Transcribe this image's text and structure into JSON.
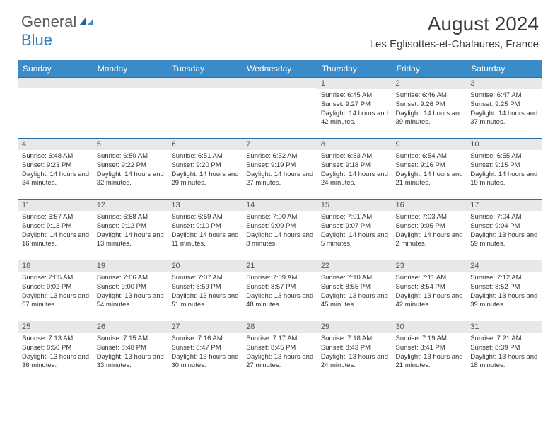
{
  "logo": {
    "general": "General",
    "blue": "Blue"
  },
  "title": "August 2024",
  "location": "Les Eglisottes-et-Chalaures, France",
  "colors": {
    "header_bg": "#3a8cc9",
    "header_text": "#ffffff",
    "daynum_bg": "#e8e8e8",
    "border": "#2b6fa8",
    "logo_blue": "#2b7fc3",
    "logo_gray": "#5a5a5a"
  },
  "weekdays": [
    "Sunday",
    "Monday",
    "Tuesday",
    "Wednesday",
    "Thursday",
    "Friday",
    "Saturday"
  ],
  "weeks": [
    [
      null,
      null,
      null,
      null,
      {
        "n": "1",
        "sr": "6:45 AM",
        "ss": "9:27 PM",
        "dl": "14 hours and 42 minutes."
      },
      {
        "n": "2",
        "sr": "6:46 AM",
        "ss": "9:26 PM",
        "dl": "14 hours and 39 minutes."
      },
      {
        "n": "3",
        "sr": "6:47 AM",
        "ss": "9:25 PM",
        "dl": "14 hours and 37 minutes."
      }
    ],
    [
      {
        "n": "4",
        "sr": "6:48 AM",
        "ss": "9:23 PM",
        "dl": "14 hours and 34 minutes."
      },
      {
        "n": "5",
        "sr": "6:50 AM",
        "ss": "9:22 PM",
        "dl": "14 hours and 32 minutes."
      },
      {
        "n": "6",
        "sr": "6:51 AM",
        "ss": "9:20 PM",
        "dl": "14 hours and 29 minutes."
      },
      {
        "n": "7",
        "sr": "6:52 AM",
        "ss": "9:19 PM",
        "dl": "14 hours and 27 minutes."
      },
      {
        "n": "8",
        "sr": "6:53 AM",
        "ss": "9:18 PM",
        "dl": "14 hours and 24 minutes."
      },
      {
        "n": "9",
        "sr": "6:54 AM",
        "ss": "9:16 PM",
        "dl": "14 hours and 21 minutes."
      },
      {
        "n": "10",
        "sr": "6:55 AM",
        "ss": "9:15 PM",
        "dl": "14 hours and 19 minutes."
      }
    ],
    [
      {
        "n": "11",
        "sr": "6:57 AM",
        "ss": "9:13 PM",
        "dl": "14 hours and 16 minutes."
      },
      {
        "n": "12",
        "sr": "6:58 AM",
        "ss": "9:12 PM",
        "dl": "14 hours and 13 minutes."
      },
      {
        "n": "13",
        "sr": "6:59 AM",
        "ss": "9:10 PM",
        "dl": "14 hours and 11 minutes."
      },
      {
        "n": "14",
        "sr": "7:00 AM",
        "ss": "9:09 PM",
        "dl": "14 hours and 8 minutes."
      },
      {
        "n": "15",
        "sr": "7:01 AM",
        "ss": "9:07 PM",
        "dl": "14 hours and 5 minutes."
      },
      {
        "n": "16",
        "sr": "7:03 AM",
        "ss": "9:05 PM",
        "dl": "14 hours and 2 minutes."
      },
      {
        "n": "17",
        "sr": "7:04 AM",
        "ss": "9:04 PM",
        "dl": "13 hours and 59 minutes."
      }
    ],
    [
      {
        "n": "18",
        "sr": "7:05 AM",
        "ss": "9:02 PM",
        "dl": "13 hours and 57 minutes."
      },
      {
        "n": "19",
        "sr": "7:06 AM",
        "ss": "9:00 PM",
        "dl": "13 hours and 54 minutes."
      },
      {
        "n": "20",
        "sr": "7:07 AM",
        "ss": "8:59 PM",
        "dl": "13 hours and 51 minutes."
      },
      {
        "n": "21",
        "sr": "7:09 AM",
        "ss": "8:57 PM",
        "dl": "13 hours and 48 minutes."
      },
      {
        "n": "22",
        "sr": "7:10 AM",
        "ss": "8:55 PM",
        "dl": "13 hours and 45 minutes."
      },
      {
        "n": "23",
        "sr": "7:11 AM",
        "ss": "8:54 PM",
        "dl": "13 hours and 42 minutes."
      },
      {
        "n": "24",
        "sr": "7:12 AM",
        "ss": "8:52 PM",
        "dl": "13 hours and 39 minutes."
      }
    ],
    [
      {
        "n": "25",
        "sr": "7:13 AM",
        "ss": "8:50 PM",
        "dl": "13 hours and 36 minutes."
      },
      {
        "n": "26",
        "sr": "7:15 AM",
        "ss": "8:48 PM",
        "dl": "13 hours and 33 minutes."
      },
      {
        "n": "27",
        "sr": "7:16 AM",
        "ss": "8:47 PM",
        "dl": "13 hours and 30 minutes."
      },
      {
        "n": "28",
        "sr": "7:17 AM",
        "ss": "8:45 PM",
        "dl": "13 hours and 27 minutes."
      },
      {
        "n": "29",
        "sr": "7:18 AM",
        "ss": "8:43 PM",
        "dl": "13 hours and 24 minutes."
      },
      {
        "n": "30",
        "sr": "7:19 AM",
        "ss": "8:41 PM",
        "dl": "13 hours and 21 minutes."
      },
      {
        "n": "31",
        "sr": "7:21 AM",
        "ss": "8:39 PM",
        "dl": "13 hours and 18 minutes."
      }
    ]
  ],
  "labels": {
    "sunrise": "Sunrise:",
    "sunset": "Sunset:",
    "daylight": "Daylight:"
  }
}
